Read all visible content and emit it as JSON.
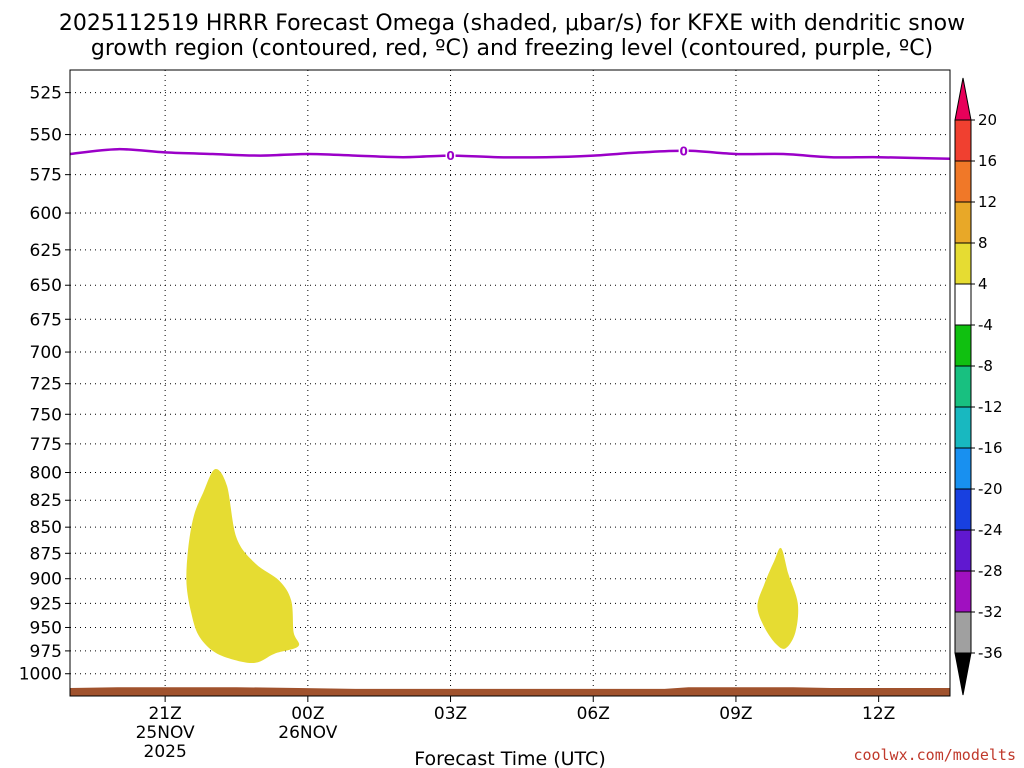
{
  "title_line1": "2025112519 HRRR Forecast Omega (shaded, μbar/s) for KFXE with dendritic snow",
  "title_line2": "growth region (contoured, red, ºC) and freezing level (contoured, purple, ºC)",
  "watermark": "coolwx.com/modelts",
  "chart_data": {
    "type": "time-height",
    "xlabel": "Forecast Time (UTC)",
    "xlim": [
      19,
      37.5
    ],
    "ylim": [
      1025,
      512
    ],
    "y_scale": "log-pressure",
    "grid": true,
    "yticks": [
      525,
      550,
      575,
      600,
      625,
      650,
      675,
      700,
      725,
      750,
      775,
      800,
      825,
      850,
      875,
      900,
      925,
      950,
      975,
      1000
    ],
    "xticks": [
      {
        "hour": 21,
        "lines": [
          "21Z",
          "25NOV",
          "2025"
        ]
      },
      {
        "hour": 24,
        "lines": [
          "00Z",
          "26NOV"
        ]
      },
      {
        "hour": 27,
        "lines": [
          "03Z"
        ]
      },
      {
        "hour": 30,
        "lines": [
          "06Z"
        ]
      },
      {
        "hour": 33,
        "lines": [
          "09Z"
        ]
      },
      {
        "hour": 36,
        "lines": [
          "12Z"
        ]
      }
    ],
    "freezing_level": {
      "color": "#9b00c8",
      "label": "0",
      "label_points": [
        [
          27,
          563
        ],
        [
          31.9,
          560
        ]
      ],
      "points": [
        [
          19,
          562
        ],
        [
          20,
          559
        ],
        [
          21,
          561
        ],
        [
          22,
          562
        ],
        [
          23,
          563
        ],
        [
          24,
          562
        ],
        [
          25,
          563
        ],
        [
          26,
          564
        ],
        [
          27,
          563
        ],
        [
          28,
          564
        ],
        [
          29,
          564
        ],
        [
          30,
          563
        ],
        [
          31,
          561
        ],
        [
          32,
          560
        ],
        [
          33,
          562
        ],
        [
          34,
          562
        ],
        [
          35,
          564
        ],
        [
          36,
          564
        ],
        [
          37.5,
          565
        ]
      ]
    },
    "omega_regions": [
      {
        "color": "#e6dc32",
        "label": "4 to 8 μbar/s",
        "points": [
          [
            22.05,
            797
          ],
          [
            22.3,
            812
          ],
          [
            22.5,
            860
          ],
          [
            22.9,
            885
          ],
          [
            23.4,
            902
          ],
          [
            23.65,
            922
          ],
          [
            23.7,
            955
          ],
          [
            23.8,
            970
          ],
          [
            23.3,
            978
          ],
          [
            22.9,
            988
          ],
          [
            22.4,
            984
          ],
          [
            22.0,
            975
          ],
          [
            21.7,
            958
          ],
          [
            21.55,
            935
          ],
          [
            21.45,
            905
          ],
          [
            21.48,
            872
          ],
          [
            21.6,
            840
          ],
          [
            21.8,
            818
          ]
        ]
      },
      {
        "color": "#e6dc32",
        "label": "4 to 8 μbar/s",
        "points": [
          [
            33.95,
            870
          ],
          [
            34.1,
            895
          ],
          [
            34.3,
            925
          ],
          [
            34.25,
            955
          ],
          [
            34.05,
            972
          ],
          [
            33.85,
            968
          ],
          [
            33.6,
            950
          ],
          [
            33.45,
            928
          ],
          [
            33.6,
            905
          ],
          [
            33.8,
            883
          ]
        ]
      }
    ],
    "terrain": {
      "color": "#a0522d",
      "points": [
        [
          19,
          1016
        ],
        [
          20,
          1015
        ],
        [
          22.5,
          1015
        ],
        [
          23.8,
          1016
        ],
        [
          25,
          1017
        ],
        [
          28,
          1017
        ],
        [
          31.5,
          1017
        ],
        [
          32,
          1015
        ],
        [
          34.2,
          1015
        ],
        [
          35,
          1016
        ],
        [
          37.5,
          1016
        ]
      ]
    },
    "colorbar": {
      "ticks": [
        "20",
        "16",
        "12",
        "8",
        "4",
        "-4",
        "-8",
        "-12",
        "-16",
        "-20",
        "-24",
        "-28",
        "-32",
        "-36"
      ],
      "colors": [
        "#e8005a",
        "#f04030",
        "#f07828",
        "#e8a828",
        "#e6dc32",
        "#ffffff",
        "#10c010",
        "#18c080",
        "#18b8c0",
        "#1890f0",
        "#1840e0",
        "#6018d0",
        "#a010c0",
        "#a0a0a0",
        "#000000"
      ]
    }
  }
}
